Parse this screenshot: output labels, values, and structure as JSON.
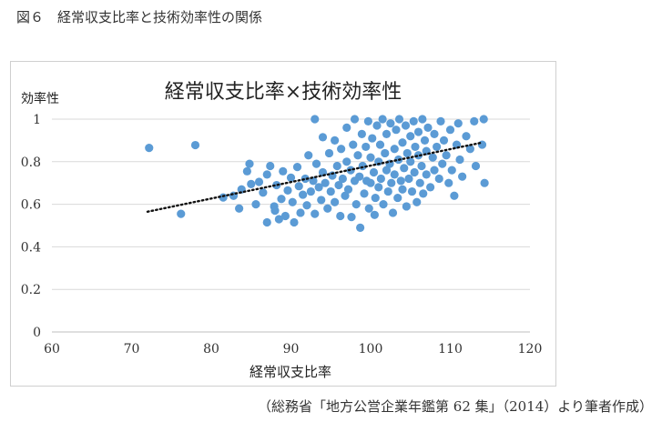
{
  "figure": {
    "caption": "図６　経常収支比率と技術効率性の関係",
    "source": "（総務省「地方公営企業年鑑第 62 集」（2014）より筆者作成）"
  },
  "colors": {
    "points": "#5b9bd5",
    "trend": "#111111",
    "gridline": "#d9d9d9",
    "axis": "#bfbfbf",
    "frame": "#cfcfcf"
  },
  "chart_data": {
    "type": "scatter",
    "title": "経常収支比率×技術効率性",
    "xlabel": "経常収支比率",
    "ylabel": "効率性",
    "xlim": [
      60,
      120
    ],
    "ylim": [
      0,
      1
    ],
    "x_ticks": [
      "60",
      "70",
      "80",
      "90",
      "100",
      "110",
      "120"
    ],
    "y_ticks": [
      "0",
      "0.2",
      "0.4",
      "0.6",
      "0.8",
      "1"
    ],
    "grid": "horizontal",
    "legend": "none",
    "trendline": {
      "style": "dotted",
      "x": [
        72.0,
        114.0
      ],
      "y": [
        0.565,
        0.89
      ]
    },
    "series": [
      {
        "points": [
          [
            72.2,
            0.865
          ],
          [
            78.0,
            0.878
          ],
          [
            76.2,
            0.555
          ],
          [
            81.5,
            0.632
          ],
          [
            82.8,
            0.64
          ],
          [
            83.5,
            0.58
          ],
          [
            83.8,
            0.67
          ],
          [
            84.5,
            0.755
          ],
          [
            84.8,
            0.79
          ],
          [
            85.0,
            0.695
          ],
          [
            85.6,
            0.6
          ],
          [
            86.0,
            0.705
          ],
          [
            86.5,
            0.655
          ],
          [
            87.0,
            0.74
          ],
          [
            87.0,
            0.515
          ],
          [
            87.4,
            0.78
          ],
          [
            87.9,
            0.59
          ],
          [
            88.0,
            0.57
          ],
          [
            88.2,
            0.69
          ],
          [
            88.5,
            0.53
          ],
          [
            88.8,
            0.625
          ],
          [
            89.0,
            0.755
          ],
          [
            89.3,
            0.545
          ],
          [
            89.6,
            0.665
          ],
          [
            90.0,
            0.725
          ],
          [
            90.2,
            0.61
          ],
          [
            90.4,
            0.515
          ],
          [
            90.8,
            0.775
          ],
          [
            91.0,
            0.685
          ],
          [
            91.2,
            0.56
          ],
          [
            91.5,
            0.645
          ],
          [
            91.8,
            0.72
          ],
          [
            92.0,
            0.595
          ],
          [
            92.2,
            0.83
          ],
          [
            92.5,
            0.66
          ],
          [
            92.8,
            0.71
          ],
          [
            93.0,
            0.555
          ],
          [
            93.0,
            1.0
          ],
          [
            93.2,
            0.79
          ],
          [
            93.5,
            0.68
          ],
          [
            93.8,
            0.62
          ],
          [
            94.0,
            0.75
          ],
          [
            94.0,
            0.915
          ],
          [
            94.3,
            0.7
          ],
          [
            94.6,
            0.58
          ],
          [
            94.8,
            0.84
          ],
          [
            95.0,
            0.66
          ],
          [
            95.2,
            0.735
          ],
          [
            95.5,
            0.61
          ],
          [
            95.5,
            0.9
          ],
          [
            95.8,
            0.78
          ],
          [
            96.0,
            0.69
          ],
          [
            96.2,
            0.545
          ],
          [
            96.3,
            0.86
          ],
          [
            96.5,
            0.72
          ],
          [
            96.8,
            0.64
          ],
          [
            97.0,
            0.8
          ],
          [
            97.0,
            0.96
          ],
          [
            97.2,
            0.67
          ],
          [
            97.5,
            0.76
          ],
          [
            97.6,
            0.54
          ],
          [
            97.8,
            0.88
          ],
          [
            98.0,
            0.71
          ],
          [
            98.0,
            1.0
          ],
          [
            98.2,
            0.6
          ],
          [
            98.4,
            0.83
          ],
          [
            98.6,
            0.73
          ],
          [
            98.7,
            0.49
          ],
          [
            98.9,
            0.93
          ],
          [
            99.0,
            0.78
          ],
          [
            99.2,
            0.65
          ],
          [
            99.4,
            0.87
          ],
          [
            99.5,
            0.71
          ],
          [
            99.7,
            0.99
          ],
          [
            99.8,
            0.58
          ],
          [
            100.0,
            0.82
          ],
          [
            100.0,
            0.7
          ],
          [
            100.2,
            0.91
          ],
          [
            100.4,
            0.75
          ],
          [
            100.5,
            0.55
          ],
          [
            100.6,
            0.63
          ],
          [
            100.8,
            0.97
          ],
          [
            101.0,
            0.8
          ],
          [
            101.0,
            0.68
          ],
          [
            101.2,
            0.88
          ],
          [
            101.3,
            0.72
          ],
          [
            101.5,
            1.0
          ],
          [
            101.6,
            0.6
          ],
          [
            101.8,
            0.84
          ],
          [
            102.0,
            0.76
          ],
          [
            102.0,
            0.93
          ],
          [
            102.2,
            0.66
          ],
          [
            102.4,
            0.79
          ],
          [
            102.5,
            0.98
          ],
          [
            102.6,
            0.7
          ],
          [
            102.8,
            0.56
          ],
          [
            103.0,
            0.86
          ],
          [
            103.0,
            0.74
          ],
          [
            103.2,
            0.95
          ],
          [
            103.4,
            0.63
          ],
          [
            103.5,
            0.81
          ],
          [
            103.6,
            1.0
          ],
          [
            103.8,
            0.71
          ],
          [
            104.0,
            0.89
          ],
          [
            104.0,
            0.67
          ],
          [
            104.2,
            0.77
          ],
          [
            104.4,
            0.97
          ],
          [
            104.5,
            0.59
          ],
          [
            104.6,
            0.84
          ],
          [
            104.8,
            0.72
          ],
          [
            105.0,
            0.92
          ],
          [
            105.0,
            0.8
          ],
          [
            105.2,
            0.66
          ],
          [
            105.4,
            0.99
          ],
          [
            105.5,
            0.75
          ],
          [
            105.6,
            0.87
          ],
          [
            105.8,
            0.61
          ],
          [
            106.0,
            0.83
          ],
          [
            106.0,
            0.94
          ],
          [
            106.2,
            0.7
          ],
          [
            106.4,
            0.78
          ],
          [
            106.5,
            1.0
          ],
          [
            106.6,
            0.65
          ],
          [
            106.8,
            0.9
          ],
          [
            107.0,
            0.74
          ],
          [
            107.0,
            0.85
          ],
          [
            107.2,
            0.96
          ],
          [
            107.5,
            0.68
          ],
          [
            107.8,
            0.82
          ],
          [
            108.0,
            0.93
          ],
          [
            108.0,
            0.76
          ],
          [
            108.3,
            0.87
          ],
          [
            108.6,
            0.72
          ],
          [
            108.8,
            0.99
          ],
          [
            109.0,
            0.79
          ],
          [
            109.2,
            0.9
          ],
          [
            109.5,
            0.83
          ],
          [
            109.8,
            0.7
          ],
          [
            110.0,
            0.95
          ],
          [
            110.2,
            0.76
          ],
          [
            110.5,
            0.64
          ],
          [
            110.8,
            0.88
          ],
          [
            111.0,
            0.98
          ],
          [
            111.2,
            0.81
          ],
          [
            111.5,
            0.73
          ],
          [
            112.0,
            0.92
          ],
          [
            112.5,
            0.86
          ],
          [
            113.0,
            0.99
          ],
          [
            113.2,
            0.78
          ],
          [
            114.0,
            0.88
          ],
          [
            114.2,
            1.0
          ],
          [
            114.3,
            0.7
          ]
        ]
      }
    ]
  }
}
